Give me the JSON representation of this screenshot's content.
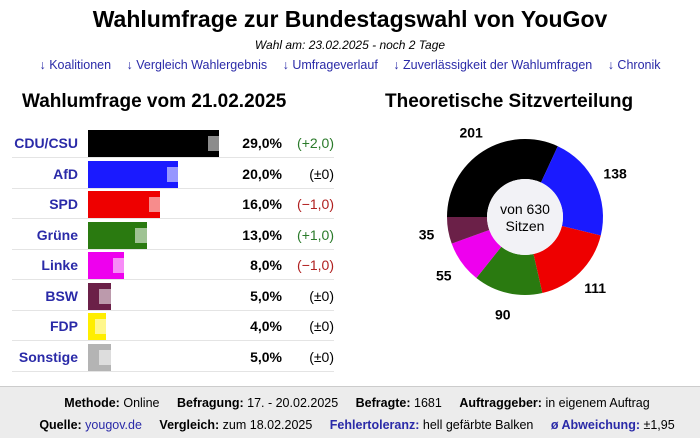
{
  "header": {
    "title": "Wahlumfrage zur Bundestagswahl von YouGov",
    "subtitle": "Wahl am: 23.02.2025 - noch 2 Tage",
    "links": [
      "↓ Koalitionen",
      "↓ Vergleich Wahlergebnis",
      "↓ Umfrageverlauf",
      "↓ Zuverlässigkeit der Wahlumfragen",
      "↓ Chronik"
    ]
  },
  "poll": {
    "heading": "Wahlumfrage vom 21.02.2025",
    "rows": [
      {
        "party": "CDU/CSU",
        "value": 29.0,
        "pct": "29,0%",
        "change": "(+2,0)",
        "color": "#000000",
        "change_color": "#2a7a2a"
      },
      {
        "party": "AfD",
        "value": 20.0,
        "pct": "20,0%",
        "change": "(±0)",
        "color": "#1a1aff",
        "change_color": "#000000"
      },
      {
        "party": "SPD",
        "value": 16.0,
        "pct": "16,0%",
        "change": "(−1,0)",
        "color": "#ee0000",
        "change_color": "#b02020"
      },
      {
        "party": "Grüne",
        "value": 13.0,
        "pct": "13,0%",
        "change": "(+1,0)",
        "color": "#2a7a10",
        "change_color": "#2a7a2a"
      },
      {
        "party": "Linke",
        "value": 8.0,
        "pct": "8,0%",
        "change": "(−1,0)",
        "color": "#ee00ee",
        "change_color": "#b02020"
      },
      {
        "party": "BSW",
        "value": 5.0,
        "pct": "5,0%",
        "change": "(±0)",
        "color": "#6b2048",
        "change_color": "#000000"
      },
      {
        "party": "FDP",
        "value": 4.0,
        "pct": "4,0%",
        "change": "(±0)",
        "color": "#ffee00",
        "change_color": "#000000"
      },
      {
        "party": "Sonstige",
        "value": 5.0,
        "pct": "5,0%",
        "change": "(±0)",
        "color": "#b4b4b4",
        "change_color": "#000000"
      }
    ]
  },
  "seats": {
    "heading": "Theoretische Sitzverteilung",
    "center_line1": "von 630",
    "center_line2": "Sitzen",
    "slices": [
      {
        "party": "CDU/CSU",
        "seats": 201,
        "label": "201",
        "color": "#000000"
      },
      {
        "party": "AfD",
        "seats": 138,
        "label": "138",
        "color": "#1a1aff"
      },
      {
        "party": "SPD",
        "seats": 111,
        "label": "111",
        "color": "#ee0000"
      },
      {
        "party": "Grüne",
        "seats": 90,
        "label": "90",
        "color": "#2a7a10"
      },
      {
        "party": "Linke",
        "seats": 55,
        "label": "55",
        "color": "#ee00ee"
      },
      {
        "party": "BSW",
        "seats": 35,
        "label": "35",
        "color": "#6b2048"
      }
    ]
  },
  "footer": {
    "methode_label": "Methode:",
    "methode": "Online",
    "befragung_label": "Befragung:",
    "befragung": "17. - 20.02.2025",
    "befragte_label": "Befragte:",
    "befragte": "1681",
    "auftrag_label": "Auftraggeber:",
    "auftrag": "in eigenem Auftrag",
    "quelle_label": "Quelle:",
    "quelle": "yougov.de",
    "vergleich_label": "Vergleich:",
    "vergleich": "zum 18.02.2025",
    "fehler_label": "Fehlertoleranz:",
    "fehler": "hell gefärbte Balken",
    "abw_label": "ø Abweichung:",
    "abw": "±1,95"
  }
}
